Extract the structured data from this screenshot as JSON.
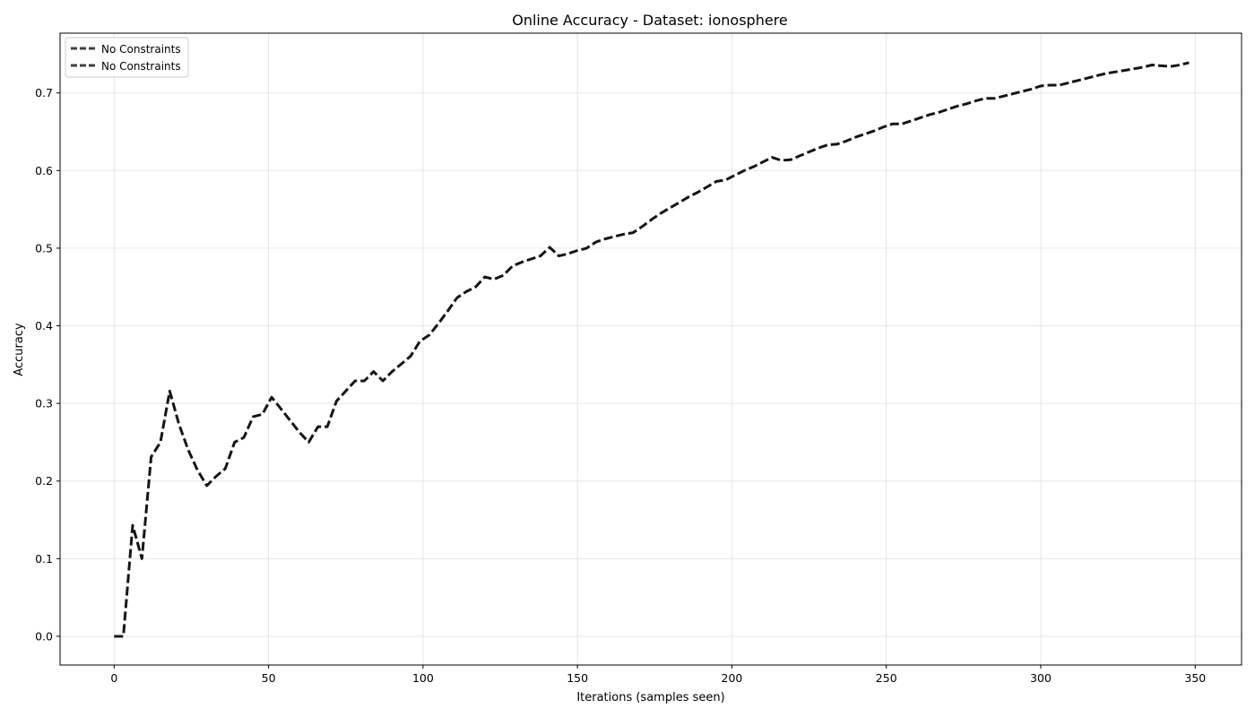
{
  "chart_data": {
    "type": "line",
    "title": "Online Accuracy - Dataset: ionosphere",
    "xlabel": "Iterations (samples seen)",
    "ylabel": "Accuracy",
    "xlim": [
      -17.5,
      365
    ],
    "ylim": [
      -0.037,
      0.777
    ],
    "xticks": [
      0,
      50,
      100,
      150,
      200,
      250,
      300,
      350
    ],
    "yticks": [
      0.0,
      0.1,
      0.2,
      0.3,
      0.4,
      0.5,
      0.6,
      0.7
    ],
    "grid": true,
    "legend_position": "top-left",
    "series": [
      {
        "name": "No Constraints",
        "color": "#151515",
        "style": "dashed",
        "x": [
          0,
          3,
          6,
          9,
          12,
          15,
          18,
          21,
          24,
          27,
          30,
          33,
          36,
          39,
          42,
          45,
          48,
          51,
          54,
          57,
          60,
          63,
          66,
          69,
          72,
          75,
          78,
          81,
          84,
          87,
          90,
          93,
          96,
          99,
          102,
          105,
          108,
          111,
          114,
          117,
          120,
          123,
          126,
          129,
          132,
          135,
          138,
          141,
          144,
          147,
          150,
          153,
          156,
          159,
          162,
          165,
          168,
          171,
          174,
          177,
          180,
          183,
          186,
          189,
          192,
          195,
          198,
          201,
          204,
          207,
          210,
          213,
          216,
          219,
          222,
          225,
          228,
          231,
          234,
          237,
          240,
          243,
          246,
          249,
          252,
          255,
          258,
          261,
          264,
          267,
          270,
          273,
          276,
          279,
          282,
          285,
          288,
          291,
          294,
          297,
          300,
          303,
          306,
          309,
          312,
          315,
          318,
          321,
          324,
          327,
          330,
          333,
          336,
          339,
          342,
          345,
          348
        ],
        "y": [
          0.0,
          0.0,
          0.143,
          0.1,
          0.231,
          0.25,
          0.316,
          0.273,
          0.24,
          0.214,
          0.194,
          0.206,
          0.216,
          0.25,
          0.256,
          0.283,
          0.286,
          0.308,
          0.293,
          0.278,
          0.263,
          0.25,
          0.27,
          0.27,
          0.303,
          0.316,
          0.329,
          0.329,
          0.341,
          0.329,
          0.341,
          0.351,
          0.361,
          0.38,
          0.388,
          0.403,
          0.419,
          0.436,
          0.444,
          0.45,
          0.463,
          0.46,
          0.465,
          0.477,
          0.482,
          0.486,
          0.49,
          0.501,
          0.49,
          0.493,
          0.497,
          0.5,
          0.508,
          0.512,
          0.515,
          0.518,
          0.52,
          0.528,
          0.537,
          0.545,
          0.552,
          0.559,
          0.566,
          0.572,
          0.579,
          0.586,
          0.588,
          0.594,
          0.6,
          0.605,
          0.611,
          0.617,
          0.613,
          0.614,
          0.619,
          0.624,
          0.629,
          0.633,
          0.634,
          0.638,
          0.643,
          0.647,
          0.651,
          0.656,
          0.66,
          0.66,
          0.664,
          0.668,
          0.672,
          0.675,
          0.679,
          0.683,
          0.686,
          0.69,
          0.693,
          0.693,
          0.696,
          0.699,
          0.702,
          0.705,
          0.709,
          0.71,
          0.71,
          0.713,
          0.716,
          0.719,
          0.722,
          0.725,
          0.727,
          0.729,
          0.731,
          0.733,
          0.736,
          0.735,
          0.734,
          0.736,
          0.739
        ]
      }
    ],
    "legend_entries": [
      "No Constraints",
      "No Constraints"
    ]
  }
}
